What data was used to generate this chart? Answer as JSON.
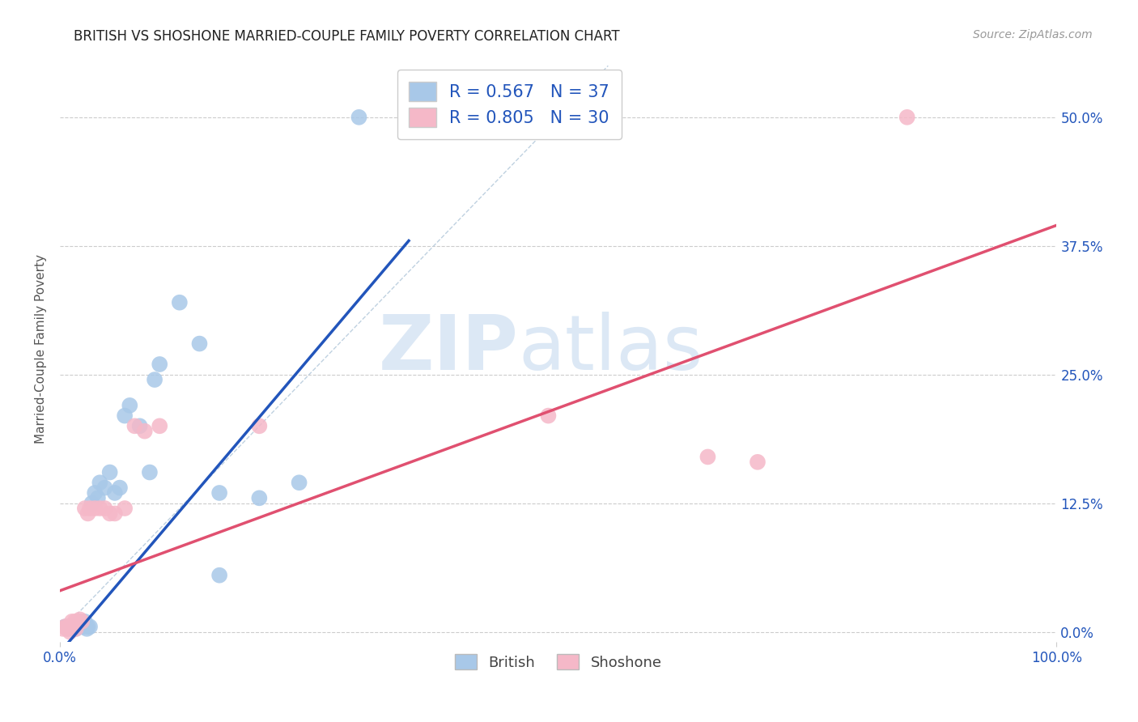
{
  "title": "BRITISH VS SHOSHONE MARRIED-COUPLE FAMILY POVERTY CORRELATION CHART",
  "source": "Source: ZipAtlas.com",
  "ylabel": "Married-Couple Family Poverty",
  "xlim": [
    0,
    1.0
  ],
  "ylim": [
    -0.01,
    0.56
  ],
  "ytick_labels": [
    "0.0%",
    "12.5%",
    "25.0%",
    "37.5%",
    "50.0%"
  ],
  "ytick_values": [
    0.0,
    0.125,
    0.25,
    0.375,
    0.5
  ],
  "british_R": 0.567,
  "british_N": 37,
  "shoshone_R": 0.805,
  "shoshone_N": 30,
  "british_color": "#a8c8e8",
  "british_line_color": "#2255bb",
  "shoshone_color": "#f5b8c8",
  "shoshone_line_color": "#e05070",
  "diagonal_color": "#b8ccdd",
  "background_color": "#ffffff",
  "grid_color": "#cccccc",
  "watermark_zip": "ZIP",
  "watermark_atlas": "atlas",
  "watermark_color": "#dce8f5",
  "british_line_x0": 0.0,
  "british_line_y0": -0.02,
  "british_line_x1": 0.35,
  "british_line_y1": 0.38,
  "shoshone_line_x0": 0.0,
  "shoshone_line_y0": 0.04,
  "shoshone_line_x1": 1.0,
  "shoshone_line_y1": 0.395,
  "british_x": [
    0.005,
    0.008,
    0.01,
    0.012,
    0.014,
    0.015,
    0.016,
    0.018,
    0.02,
    0.02,
    0.022,
    0.023,
    0.025,
    0.027,
    0.028,
    0.03,
    0.032,
    0.035,
    0.038,
    0.04,
    0.045,
    0.05,
    0.055,
    0.06,
    0.065,
    0.07,
    0.08,
    0.09,
    0.095,
    0.1,
    0.12,
    0.14,
    0.16,
    0.2,
    0.24,
    0.16,
    0.3
  ],
  "british_y": [
    0.005,
    0.003,
    0.005,
    0.005,
    0.003,
    0.005,
    0.003,
    0.005,
    0.005,
    0.01,
    0.005,
    0.005,
    0.01,
    0.003,
    0.005,
    0.005,
    0.125,
    0.135,
    0.13,
    0.145,
    0.14,
    0.155,
    0.135,
    0.14,
    0.21,
    0.22,
    0.2,
    0.155,
    0.245,
    0.26,
    0.32,
    0.28,
    0.135,
    0.13,
    0.145,
    0.055,
    0.5
  ],
  "shoshone_x": [
    0.003,
    0.005,
    0.007,
    0.008,
    0.01,
    0.012,
    0.013,
    0.015,
    0.016,
    0.018,
    0.02,
    0.022,
    0.025,
    0.028,
    0.03,
    0.035,
    0.04,
    0.045,
    0.05,
    0.055,
    0.065,
    0.075,
    0.085,
    0.1,
    0.49,
    0.2,
    0.65,
    0.7,
    0.85,
    0.01
  ],
  "shoshone_y": [
    0.003,
    0.005,
    0.003,
    0.005,
    0.005,
    0.01,
    0.005,
    0.01,
    0.003,
    0.01,
    0.012,
    0.01,
    0.12,
    0.115,
    0.12,
    0.12,
    0.12,
    0.12,
    0.115,
    0.115,
    0.12,
    0.2,
    0.195,
    0.2,
    0.21,
    0.2,
    0.17,
    0.165,
    0.5,
    0.0
  ]
}
